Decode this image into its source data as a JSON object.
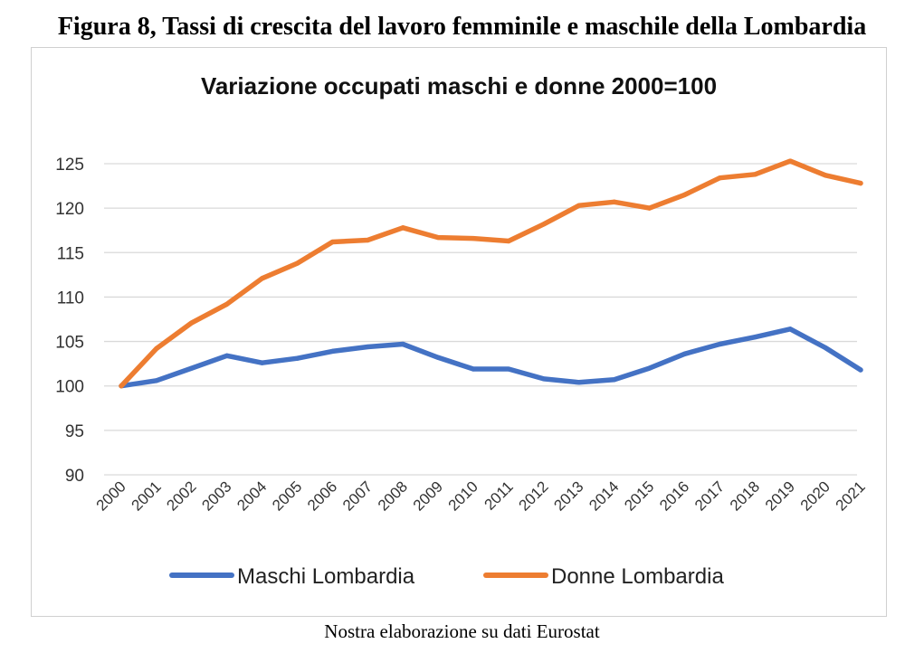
{
  "figure_caption": "Figura 8, Tassi di crescita del lavoro femminile e maschile della Lombardia",
  "source_note": "Nostra elaborazione su dati Eurostat",
  "chart_data": {
    "type": "line",
    "title": "Variazione occupati maschi e donne 2000=100",
    "xlabel": "",
    "ylabel": "",
    "categories": [
      "2000",
      "2001",
      "2002",
      "2003",
      "2004",
      "2005",
      "2006",
      "2007",
      "2008",
      "2009",
      "2010",
      "2011",
      "2012",
      "2013",
      "2014",
      "2015",
      "2016",
      "2017",
      "2018",
      "2019",
      "2020",
      "2021"
    ],
    "ylim": [
      90,
      125
    ],
    "yticks": [
      90,
      95,
      100,
      105,
      110,
      115,
      120,
      125
    ],
    "grid": true,
    "legend_position": "bottom",
    "series": [
      {
        "name": "Maschi Lombardia",
        "color": "#4472C4",
        "values": [
          100,
          100.6,
          102.0,
          103.4,
          102.6,
          103.1,
          103.9,
          104.4,
          104.7,
          103.2,
          101.9,
          101.9,
          100.8,
          100.4,
          100.7,
          102.0,
          103.6,
          104.7,
          105.5,
          106.4,
          104.3,
          101.8
        ]
      },
      {
        "name": "Donne Lombardia",
        "color": "#ED7D31",
        "values": [
          100,
          104.2,
          107.1,
          109.2,
          112.1,
          113.8,
          116.2,
          116.4,
          117.8,
          116.7,
          116.6,
          116.3,
          118.2,
          120.3,
          120.7,
          120.0,
          121.5,
          123.4,
          123.8,
          125.3,
          123.7,
          122.8
        ]
      }
    ]
  }
}
